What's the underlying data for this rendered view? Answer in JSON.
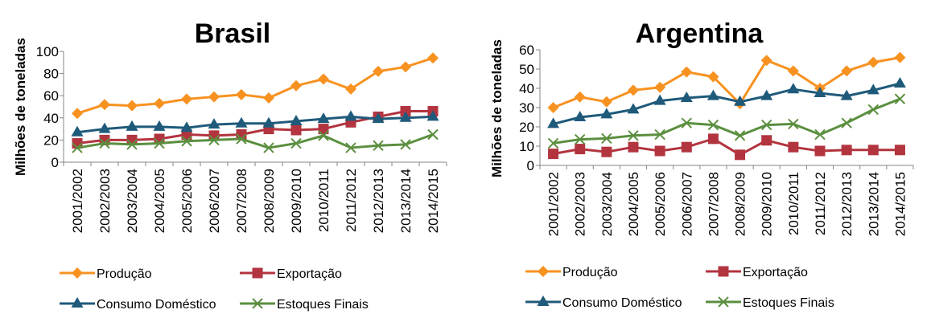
{
  "chart_data": [
    {
      "type": "line",
      "title": "Brasil",
      "xlabel": "",
      "ylabel": "Milhões de toneladas",
      "ylim": [
        0,
        100
      ],
      "yticks": [
        0,
        20,
        40,
        60,
        80,
        100
      ],
      "grid": false,
      "legend": "bottom",
      "categories": [
        "2001/2002",
        "2002/2003",
        "2003/2004",
        "2004/2005",
        "2005/2006",
        "2006/2007",
        "2007/2008",
        "2008/2009",
        "2009/2010",
        "2010/2011",
        "2011/2012",
        "2012/2013",
        "2013/2014",
        "2014/2015"
      ],
      "series": [
        {
          "name": "Produção",
          "color": "#F79221",
          "marker": "diamond",
          "values": [
            44,
            52,
            51,
            53,
            57,
            59,
            61,
            58,
            69,
            75,
            66,
            82,
            86,
            94
          ]
        },
        {
          "name": "Exportação",
          "color": "#B2343F",
          "marker": "square",
          "values": [
            17,
            20,
            20,
            21,
            25,
            24,
            25,
            30,
            29,
            30,
            36,
            41,
            46,
            46
          ]
        },
        {
          "name": "Consumo Doméstico",
          "color": "#1F5A7A",
          "marker": "triangle",
          "values": [
            27,
            30,
            32,
            32,
            31,
            34,
            35,
            35,
            37,
            39,
            41,
            39,
            40,
            41
          ]
        },
        {
          "name": "Estoques Finais",
          "color": "#5B8F3F",
          "marker": "x",
          "values": [
            13,
            17,
            16,
            17,
            19,
            20,
            21,
            13,
            17,
            24,
            13,
            15,
            16,
            25
          ]
        }
      ]
    },
    {
      "type": "line",
      "title": "Argentina",
      "xlabel": "",
      "ylabel": "Milhões de toneladas",
      "ylim": [
        0,
        60
      ],
      "yticks": [
        0,
        10,
        20,
        30,
        40,
        50,
        60
      ],
      "grid": false,
      "legend": "bottom",
      "categories": [
        "2001/2002",
        "2002/2003",
        "2003/2004",
        "2004/2005",
        "2005/2006",
        "2006/2007",
        "2007/2008",
        "2008/2009",
        "2009/2010",
        "2010/2011",
        "2011/2012",
        "2012/2013",
        "2013/2014",
        "2014/2015"
      ],
      "series": [
        {
          "name": "Produção",
          "color": "#F79221",
          "marker": "diamond",
          "values": [
            30,
            35.5,
            33,
            39,
            40.5,
            48.5,
            46,
            32,
            54.5,
            49,
            40,
            49,
            53.5,
            56
          ]
        },
        {
          "name": "Exportação",
          "color": "#B2343F",
          "marker": "square",
          "values": [
            6,
            8.5,
            7,
            9.5,
            7.5,
            9.5,
            13.8,
            5.5,
            13,
            9.5,
            7.5,
            8,
            8,
            8
          ]
        },
        {
          "name": "Consumo Doméstico",
          "color": "#1F5A7A",
          "marker": "triangle",
          "values": [
            21.5,
            25,
            26.5,
            29,
            33.5,
            35,
            36,
            33,
            36,
            39.5,
            37.5,
            36,
            39,
            42.5
          ]
        },
        {
          "name": "Estoques Finais",
          "color": "#5B8F3F",
          "marker": "x",
          "values": [
            11.5,
            13.5,
            14,
            15.5,
            16,
            22,
            21,
            15.5,
            21,
            21.5,
            16,
            22,
            29,
            34.5
          ]
        }
      ]
    }
  ]
}
